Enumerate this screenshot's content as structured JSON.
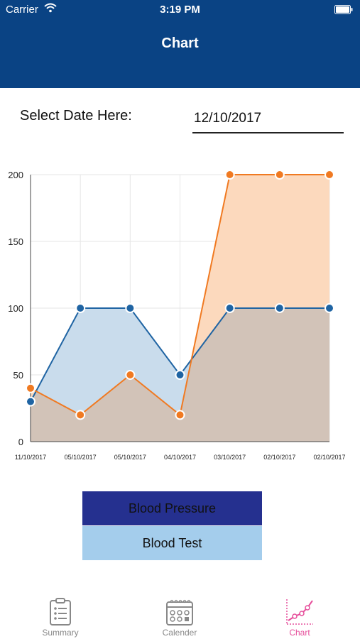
{
  "status_bar": {
    "carrier": "Carrier",
    "time": "3:19 PM"
  },
  "nav": {
    "title": "Chart"
  },
  "date_picker": {
    "label": "Select Date Here:",
    "value": "12/10/2017"
  },
  "chart_data": {
    "type": "line",
    "categories": [
      "11/10/2017",
      "05/10/2017",
      "05/10/2017",
      "04/10/2017",
      "03/10/2017",
      "02/10/2017",
      "02/10/2017"
    ],
    "ylim": [
      0,
      200
    ],
    "yticks": [
      0,
      50,
      100,
      150,
      200
    ],
    "grid": true,
    "series": [
      {
        "values": [
          30,
          100,
          100,
          50,
          100,
          100,
          100
        ],
        "color": "#1f64a3",
        "fill": "#c9dcec"
      },
      {
        "values": [
          40,
          20,
          50,
          20,
          200,
          200,
          200
        ],
        "color": "#f07a22",
        "fill": "#fcd9bd"
      }
    ],
    "overlap_fill": "#d2c3b8"
  },
  "legend": {
    "blood_pressure": "Blood Pressure",
    "blood_test": "Blood Test"
  },
  "tabs": [
    {
      "label": "Summary",
      "icon": "clipboard-icon"
    },
    {
      "label": "Calender",
      "icon": "calendar-icon"
    },
    {
      "label": "Chart",
      "icon": "chart-icon",
      "active": true
    }
  ],
  "colors": {
    "nav": "#0a4384",
    "active_tab": "#e64e9b",
    "inactive_tab": "#888888"
  }
}
